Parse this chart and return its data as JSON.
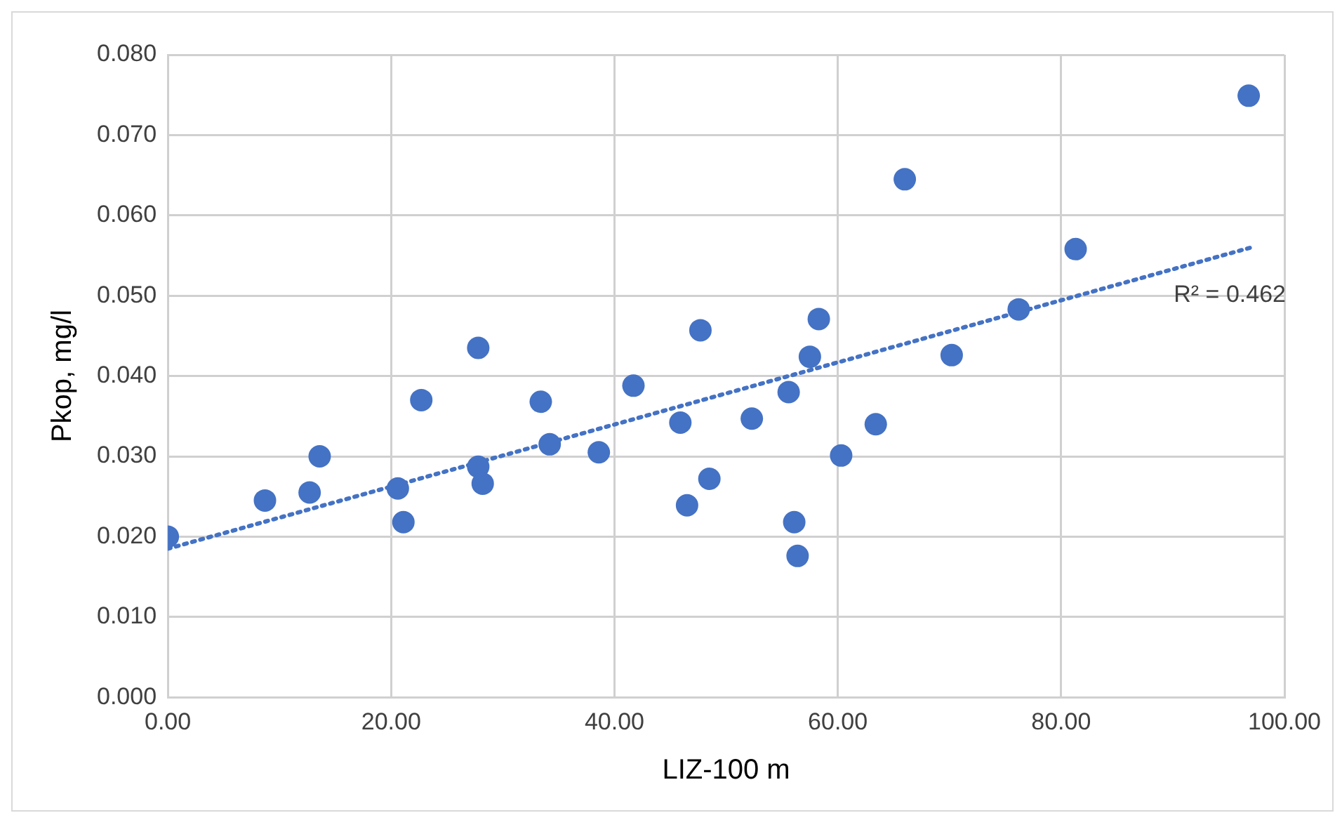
{
  "chart_data": {
    "type": "scatter",
    "xlabel": "LIZ-100 m",
    "ylabel": "Pkop, mg/l",
    "xlim": [
      0,
      100
    ],
    "ylim": [
      0,
      0.08
    ],
    "xticks": [
      {
        "value": 0,
        "label": "0.00"
      },
      {
        "value": 20,
        "label": "20.00"
      },
      {
        "value": 40,
        "label": "40.00"
      },
      {
        "value": 60,
        "label": "60.00"
      },
      {
        "value": 80,
        "label": "80.00"
      },
      {
        "value": 100,
        "label": "100.00"
      }
    ],
    "yticks": [
      {
        "value": 0,
        "label": "0.000"
      },
      {
        "value": 0.01,
        "label": "0.010"
      },
      {
        "value": 0.02,
        "label": "0.020"
      },
      {
        "value": 0.03,
        "label": "0.030"
      },
      {
        "value": 0.04,
        "label": "0.040"
      },
      {
        "value": 0.05,
        "label": "0.050"
      },
      {
        "value": 0.06,
        "label": "0.060"
      },
      {
        "value": 0.07,
        "label": "0.070"
      },
      {
        "value": 0.08,
        "label": "0.080"
      }
    ],
    "grid": true,
    "legend": false,
    "marker": "circle",
    "annotations": [
      "R² = 0.462"
    ],
    "series": [
      {
        "type": "scatter",
        "color": "#4472c4",
        "x": [
          0,
          8.7,
          12.7,
          13.6,
          20.6,
          21.1,
          22.7,
          27.8,
          27.8,
          28.2,
          33.4,
          34.2,
          38.6,
          41.7,
          45.9,
          46.5,
          47.7,
          48.5,
          52.3,
          55.6,
          56.1,
          56.4,
          57.5,
          58.3,
          60.3,
          63.4,
          66.0,
          70.2,
          76.2,
          81.3,
          96.8
        ],
        "values": [
          0.02,
          0.0245,
          0.0255,
          0.03,
          0.026,
          0.0218,
          0.037,
          0.0435,
          0.0287,
          0.0266,
          0.0368,
          0.0315,
          0.0305,
          0.0388,
          0.0342,
          0.0239,
          0.0457,
          0.0272,
          0.0347,
          0.038,
          0.0218,
          0.0176,
          0.0424,
          0.0471,
          0.0301,
          0.034,
          0.0645,
          0.0426,
          0.0483,
          0.0558,
          0.0749
        ]
      },
      {
        "type": "line",
        "color": "#4472c4",
        "line_style": "dotted",
        "marker": "none",
        "x": [
          0,
          97
        ],
        "values": [
          0.0185,
          0.056
        ]
      }
    ]
  }
}
